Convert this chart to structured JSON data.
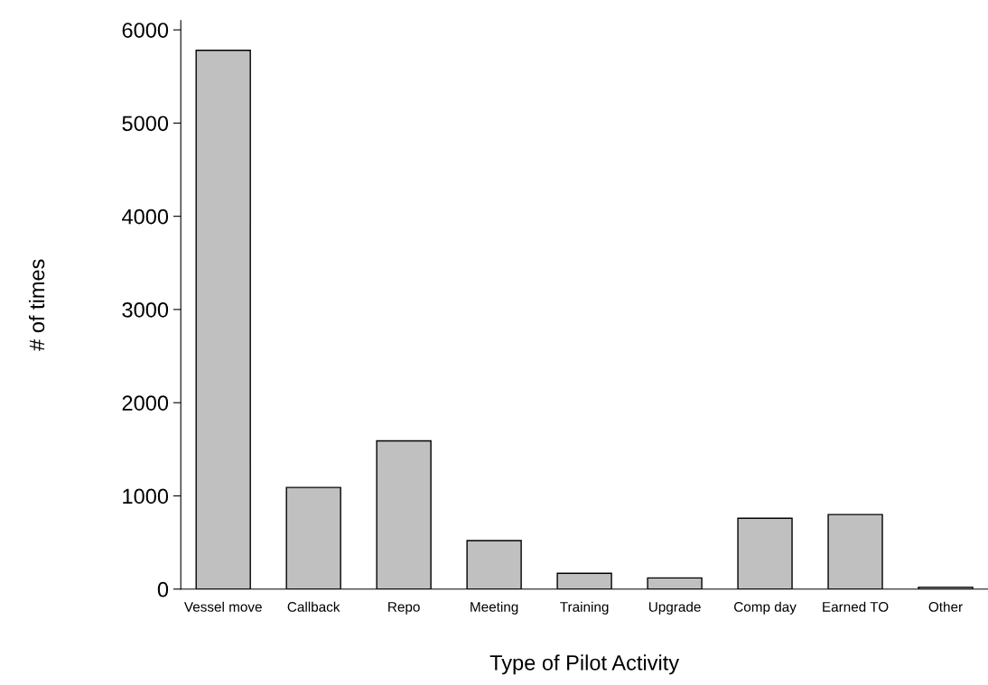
{
  "chart_data": {
    "type": "bar",
    "xlabel": "Type of Pilot Activity",
    "ylabel": "# of times",
    "categories": [
      "Vessel move",
      "Callback",
      "Repo",
      "Meeting",
      "Training",
      "Upgrade",
      "Comp day",
      "Earned TO",
      "Other"
    ],
    "values": [
      5780,
      1090,
      1590,
      520,
      170,
      120,
      760,
      800,
      20
    ],
    "color": "#c0c0c0",
    "ylim": [
      0,
      6100
    ],
    "yticks": [
      0,
      1000,
      2000,
      3000,
      4000,
      5000,
      6000
    ],
    "grid": false
  }
}
